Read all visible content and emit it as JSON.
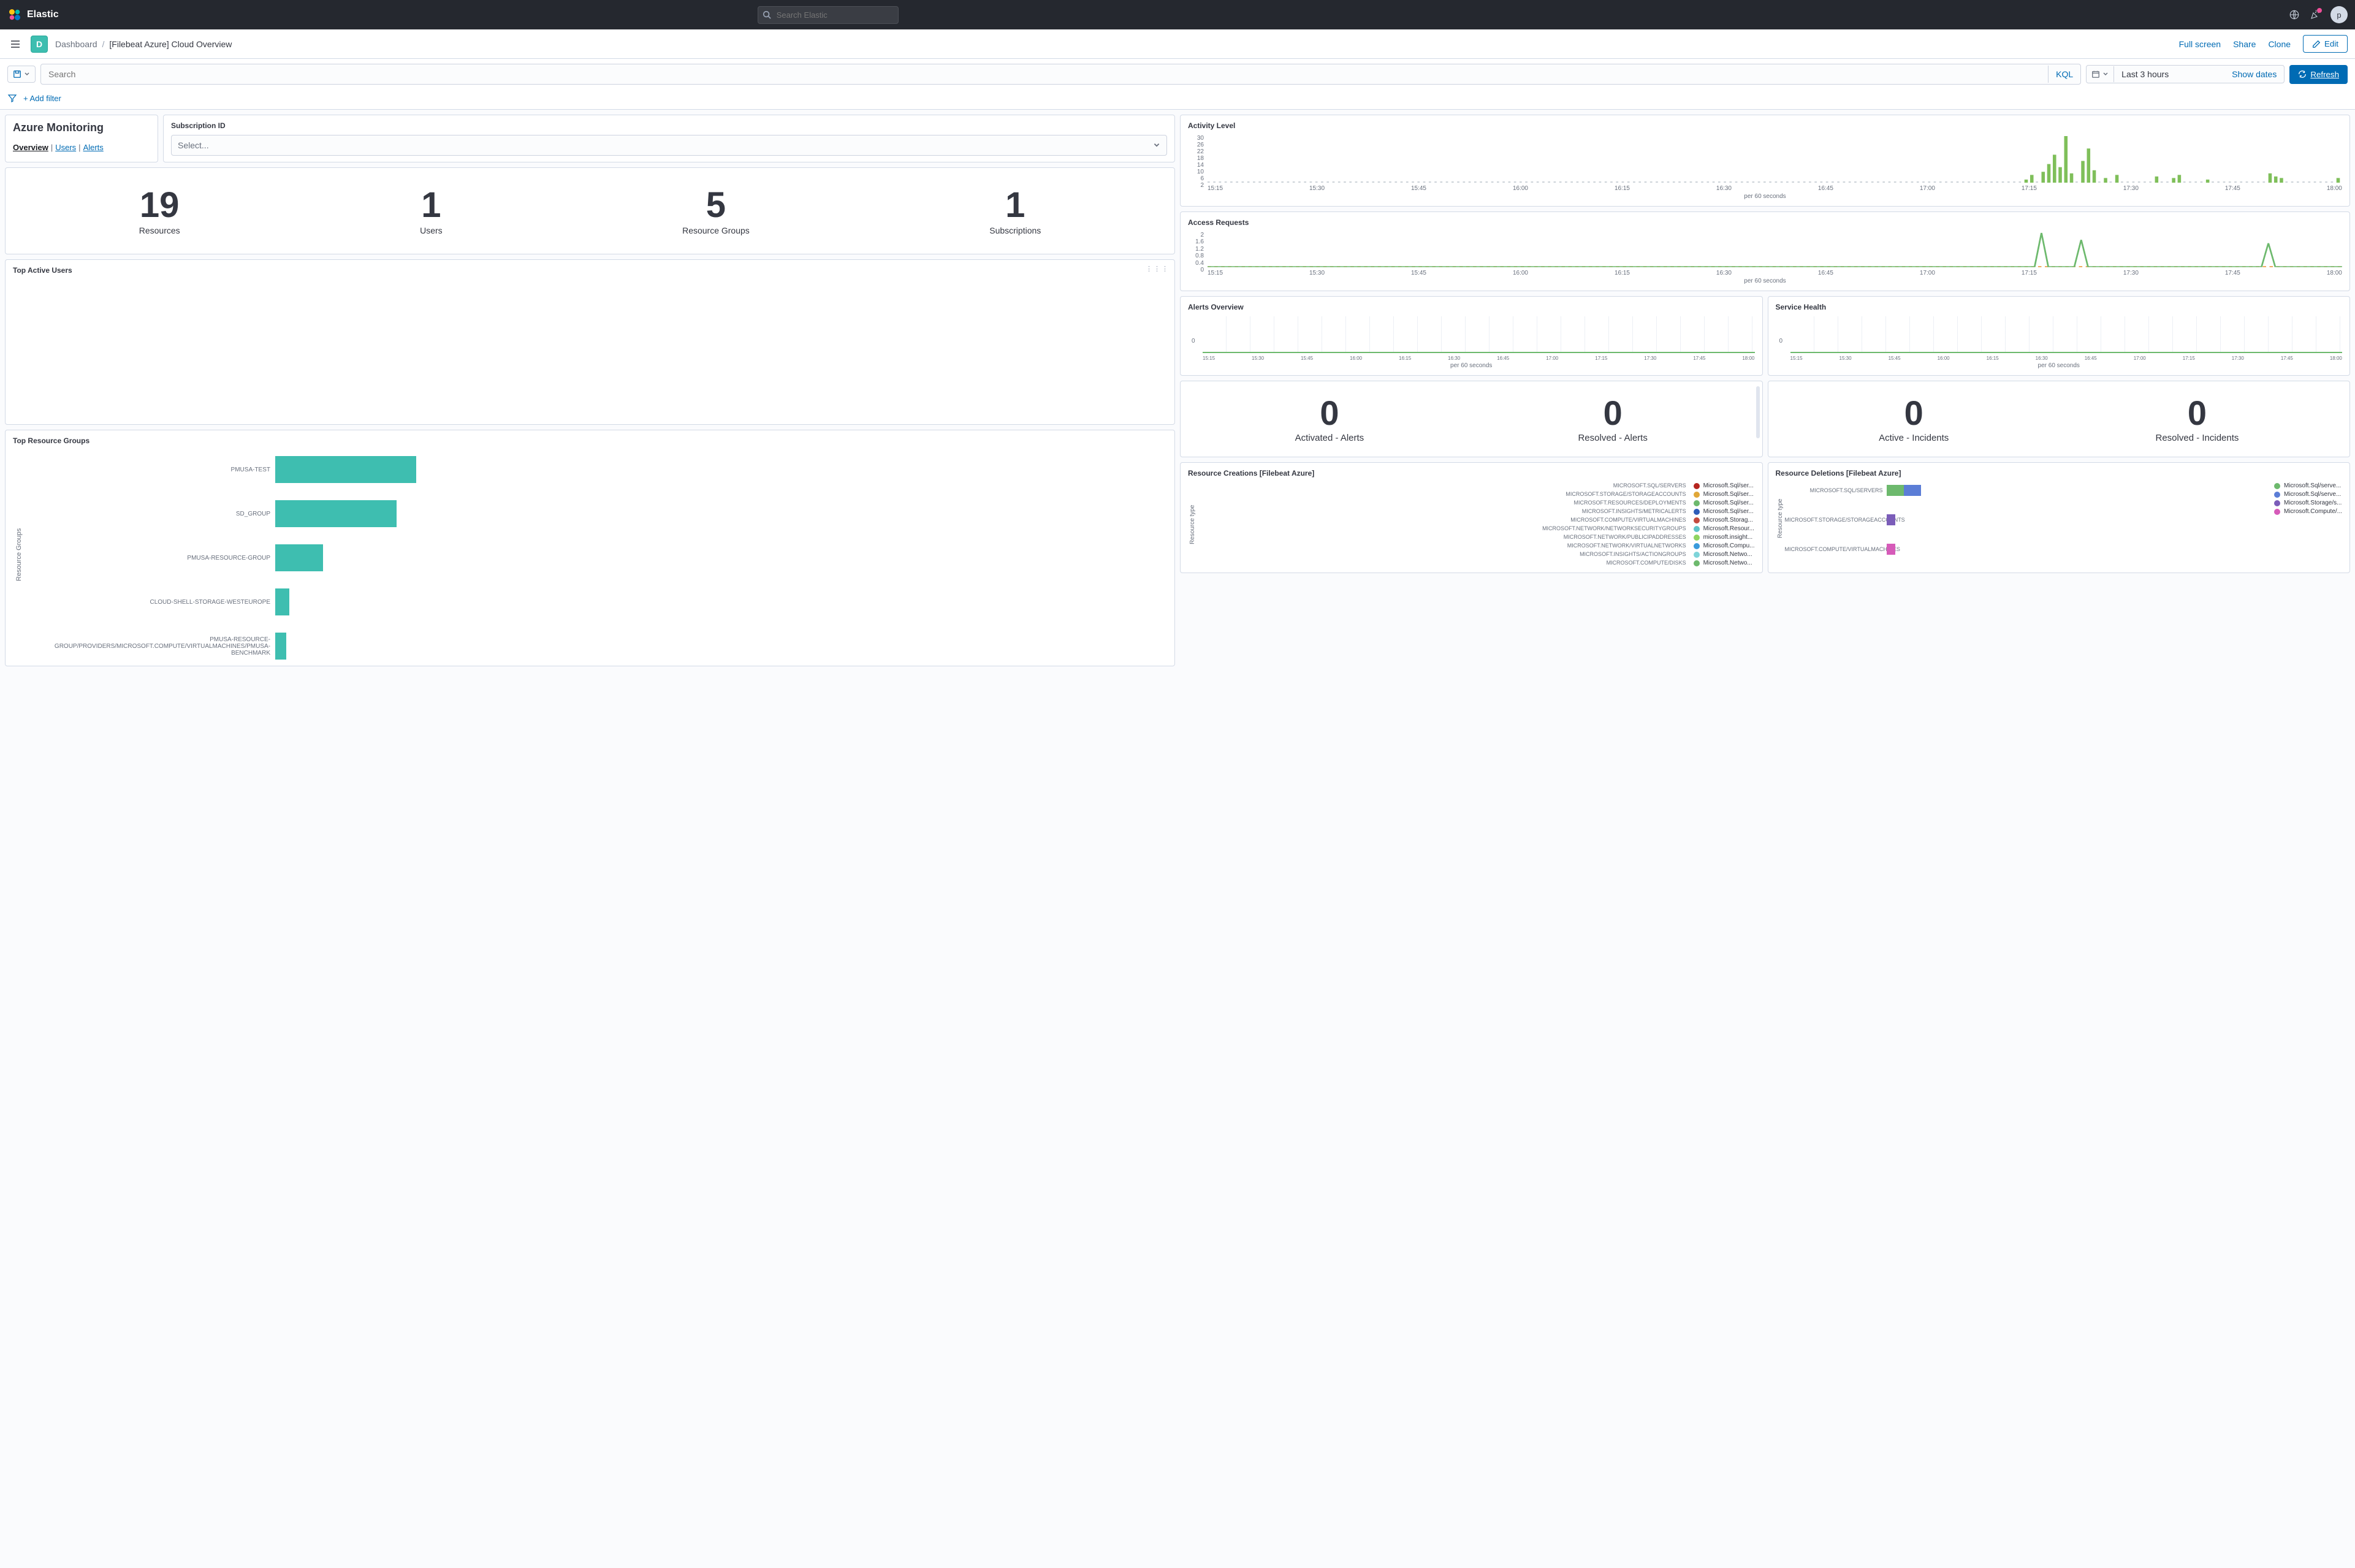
{
  "topbar": {
    "brand": "Elastic",
    "search_placeholder": "Search Elastic",
    "avatar_initial": "p"
  },
  "subheader": {
    "app_badge": "D",
    "breadcrumb_root": "Dashboard",
    "breadcrumb_current": "[Filebeat Azure] Cloud Overview",
    "full_screen": "Full screen",
    "share": "Share",
    "clone": "Clone",
    "edit": "Edit"
  },
  "querybar": {
    "search_placeholder": "Search",
    "kql": "KQL",
    "date_range": "Last 3 hours",
    "show_dates": "Show dates",
    "refresh": "Refresh"
  },
  "filterbar": {
    "add_filter": "+ Add filter"
  },
  "azure_panel": {
    "title": "Azure Monitoring",
    "link_overview": "Overview",
    "link_users": "Users",
    "link_alerts": "Alerts"
  },
  "subscription_panel": {
    "title": "Subscription ID",
    "placeholder": "Select..."
  },
  "metrics": {
    "resources": {
      "value": "19",
      "label": "Resources"
    },
    "users": {
      "value": "1",
      "label": "Users"
    },
    "rg": {
      "value": "5",
      "label": "Resource Groups"
    },
    "subs": {
      "value": "1",
      "label": "Subscriptions"
    }
  },
  "top_active_users": {
    "title": "Top Active Users"
  },
  "top_resource_groups": {
    "title": "Top Resource Groups",
    "ylabel": "Resource Groups",
    "bars": [
      {
        "label": "PMUSA-TEST",
        "width": 100
      },
      {
        "label": "SD_GROUP",
        "width": 86
      },
      {
        "label": "PMUSA-RESOURCE-GROUP",
        "width": 34
      },
      {
        "label": "CLOUD-SHELL-STORAGE-WESTEUROPE",
        "width": 10
      },
      {
        "label": "PMUSA-RESOURCE-GROUP/PROVIDERS/MICROSOFT.COMPUTE/VIRTUALMACHINES/PMUSA-BENCHMARK",
        "width": 8
      }
    ],
    "bar_color": "#3ebeb0"
  },
  "activity_level": {
    "title": "Activity Level",
    "y_ticks": [
      "30",
      "26",
      "22",
      "18",
      "14",
      "10",
      "6",
      "2"
    ],
    "x_ticks": [
      "15:15",
      "15:30",
      "15:45",
      "16:00",
      "16:15",
      "16:30",
      "16:45",
      "17:00",
      "17:15",
      "17:30",
      "17:45",
      "18:00"
    ],
    "caption": "per 60 seconds",
    "bar_color": "#7fbf5a",
    "height": 78,
    "ymax": 30,
    "bars": [
      {
        "x": 0.72,
        "v": 2
      },
      {
        "x": 0.725,
        "v": 5
      },
      {
        "x": 0.735,
        "v": 7
      },
      {
        "x": 0.74,
        "v": 12
      },
      {
        "x": 0.745,
        "v": 18
      },
      {
        "x": 0.75,
        "v": 10
      },
      {
        "x": 0.755,
        "v": 30
      },
      {
        "x": 0.76,
        "v": 6
      },
      {
        "x": 0.77,
        "v": 14
      },
      {
        "x": 0.775,
        "v": 22
      },
      {
        "x": 0.78,
        "v": 8
      },
      {
        "x": 0.79,
        "v": 3
      },
      {
        "x": 0.8,
        "v": 5
      },
      {
        "x": 0.835,
        "v": 4
      },
      {
        "x": 0.85,
        "v": 3
      },
      {
        "x": 0.855,
        "v": 5
      },
      {
        "x": 0.88,
        "v": 2
      },
      {
        "x": 0.935,
        "v": 6
      },
      {
        "x": 0.94,
        "v": 4
      },
      {
        "x": 0.945,
        "v": 3
      },
      {
        "x": 0.995,
        "v": 3
      }
    ]
  },
  "access_requests": {
    "title": "Access Requests",
    "y_ticks": [
      "2",
      "1.6",
      "1.2",
      "0.8",
      "0.4",
      "0"
    ],
    "x_ticks": [
      "15:15",
      "15:30",
      "15:45",
      "16:00",
      "16:15",
      "16:30",
      "16:45",
      "17:00",
      "17:15",
      "17:30",
      "17:45",
      "18:00"
    ],
    "caption": "per 60 seconds",
    "line_color": "#6db96d",
    "baseline_color": "#e8902e",
    "height": 58,
    "ymax": 2,
    "spikes": [
      {
        "x": 0.735,
        "v": 2
      },
      {
        "x": 0.77,
        "v": 1.6
      },
      {
        "x": 0.935,
        "v": 1.4
      }
    ]
  },
  "alerts_overview": {
    "title": "Alerts Overview",
    "y_zero": "0",
    "x_ticks": [
      "15:15",
      "15:30",
      "15:45",
      "16:00",
      "16:15",
      "16:30",
      "16:45",
      "17:00",
      "17:15",
      "17:30",
      "17:45",
      "18:00"
    ],
    "caption": "per 60 seconds",
    "line_color": "#6db96d"
  },
  "service_health": {
    "title": "Service Health",
    "y_zero": "0",
    "x_ticks": [
      "15:15",
      "15:30",
      "15:45",
      "16:00",
      "16:15",
      "16:30",
      "16:45",
      "17:00",
      "17:15",
      "17:30",
      "17:45",
      "18:00"
    ],
    "caption": "per 60 seconds",
    "line_color": "#6db96d"
  },
  "alerts_metrics": {
    "activated": {
      "value": "0",
      "label": "Activated - Alerts"
    },
    "resolved": {
      "value": "0",
      "label": "Resolved - Alerts"
    }
  },
  "incidents_metrics": {
    "active": {
      "value": "0",
      "label": "Active - Incidents"
    },
    "resolved": {
      "value": "0",
      "label": "Resolved - Incidents"
    }
  },
  "resource_creations": {
    "title": "Resource Creations [Filebeat Azure]",
    "ylabel": "Resource type",
    "rows": [
      "MICROSOFT.SQL/SERVERS",
      "MICROSOFT.STORAGE/STORAGEACCOUNTS",
      "MICROSOFT.RESOURCES/DEPLOYMENTS",
      "MICROSOFT.INSIGHTS/METRICALERTS",
      "MICROSOFT.COMPUTE/VIRTUALMACHINES",
      "MICROSOFT.NETWORK/NETWORKSECURITYGROUPS",
      "MICROSOFT.NETWORK/PUBLICIPADDRESSES",
      "MICROSOFT.NETWORK/VIRTUALNETWORKS",
      "MICROSOFT.INSIGHTS/ACTIONGROUPS",
      "MICROSOFT.COMPUTE/DISKS"
    ],
    "legend": [
      {
        "color": "#b5251f",
        "label": "Microsoft.Sql/ser..."
      },
      {
        "color": "#e0a738",
        "label": "Microsoft.Sql/ser..."
      },
      {
        "color": "#6db96d",
        "label": "Microsoft.Sql/ser..."
      },
      {
        "color": "#2e5db9",
        "label": "Microsoft.Sql/ser..."
      },
      {
        "color": "#c44b3f",
        "label": "Microsoft.Storag..."
      },
      {
        "color": "#5fc4c9",
        "label": "Microsoft.Resour..."
      },
      {
        "color": "#8fd460",
        "label": "microsoft.insight..."
      },
      {
        "color": "#3a9bdc",
        "label": "Microsoft.Compu..."
      },
      {
        "color": "#7ed4d9",
        "label": "Microsoft.Netwo..."
      },
      {
        "color": "#6db96d",
        "label": "Microsoft.Netwo..."
      }
    ]
  },
  "resource_deletions": {
    "title": "Resource Deletions [Filebeat Azure]",
    "ylabel": "Resource type",
    "rows": [
      {
        "label": "MICROSOFT.SQL/SERVERS",
        "segs": [
          {
            "color": "#6db96d",
            "w": 28
          },
          {
            "color": "#5b7dd6",
            "w": 28
          }
        ]
      },
      {
        "label": "MICROSOFT.STORAGE/STORAGEACCOUNTS",
        "segs": [
          {
            "color": "#7b5db9",
            "w": 14
          }
        ]
      },
      {
        "label": "MICROSOFT.COMPUTE/VIRTUALMACHINES",
        "segs": [
          {
            "color": "#d65bb9",
            "w": 14
          }
        ]
      }
    ],
    "legend": [
      {
        "color": "#6db96d",
        "label": "Microsoft.Sql/serve..."
      },
      {
        "color": "#5b7dd6",
        "label": "Microsoft.Sql/serve..."
      },
      {
        "color": "#7b5db9",
        "label": "Microsoft.Storage/s..."
      },
      {
        "color": "#d65bb9",
        "label": "Microsoft.Compute/..."
      }
    ]
  }
}
